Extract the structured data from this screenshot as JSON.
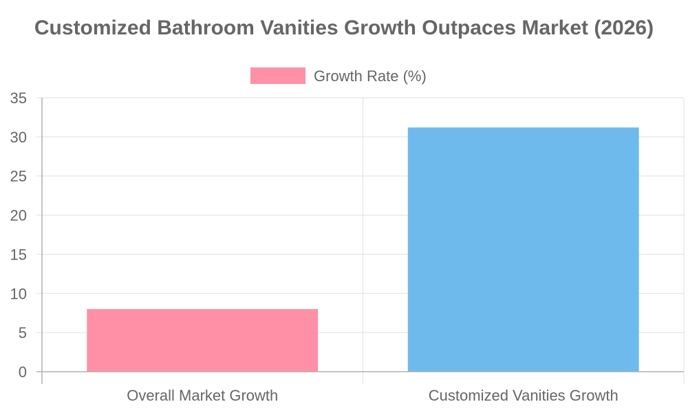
{
  "chart_data": {
    "type": "bar",
    "title": "Customized Bathroom Vanities Growth Outpaces Market (2026)",
    "categories": [
      "Overall Market Growth",
      "Customized Vanities Growth"
    ],
    "series": [
      {
        "name": "Growth Rate (%)",
        "values": [
          8,
          31.2
        ],
        "colors": [
          "#ff90a6",
          "#6fbaec"
        ]
      }
    ],
    "xlabel": "",
    "ylabel": "",
    "ylim": [
      0,
      35
    ],
    "yticks": [
      0,
      5,
      10,
      15,
      20,
      25,
      30,
      35
    ],
    "grid": true,
    "legend_position": "top-center"
  }
}
